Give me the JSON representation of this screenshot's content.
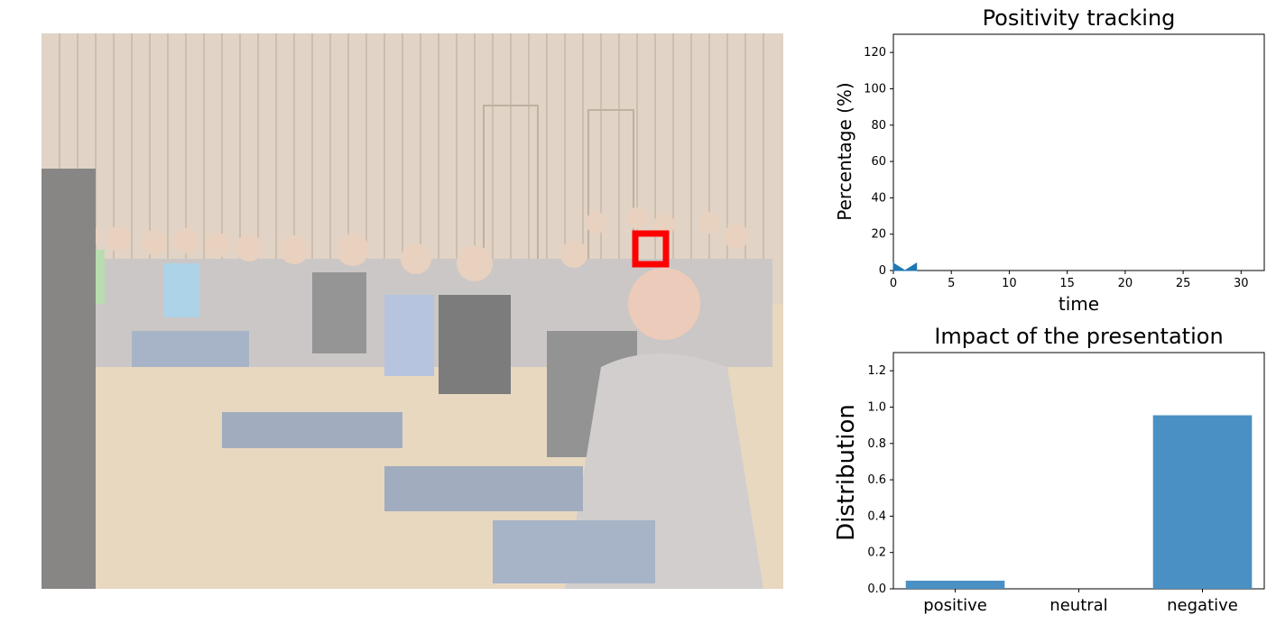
{
  "photo": {
    "description_icon": "classroom-audience-photo-icon",
    "overlay_color": "#ffffff",
    "highlight_color": "#ff0000"
  },
  "chart_data": [
    {
      "type": "area",
      "title": "Positivity tracking",
      "xlabel": "time",
      "ylabel": "Percentage (%)",
      "xlim": [
        0,
        32
      ],
      "ylim": [
        0,
        130
      ],
      "xticks": [
        "0",
        "5",
        "10",
        "15",
        "20",
        "25",
        "30"
      ],
      "yticks": [
        "0",
        "20",
        "40",
        "60",
        "80",
        "100",
        "120"
      ],
      "x": [
        0,
        1,
        2
      ],
      "values": [
        4,
        0,
        4
      ],
      "color": "#1f77b4",
      "grid": false
    },
    {
      "type": "bar",
      "title": "Impact of the presentation",
      "xlabel": "",
      "ylabel": "Distribution",
      "categories": [
        "positive",
        "neutral",
        "negative"
      ],
      "values": [
        0.045,
        0.0,
        0.955
      ],
      "ylim": [
        0,
        1.3
      ],
      "yticks": [
        "0.0",
        "0.2",
        "0.4",
        "0.6",
        "0.8",
        "1.0",
        "1.2"
      ],
      "color": "#4a90c4",
      "grid": false
    }
  ]
}
